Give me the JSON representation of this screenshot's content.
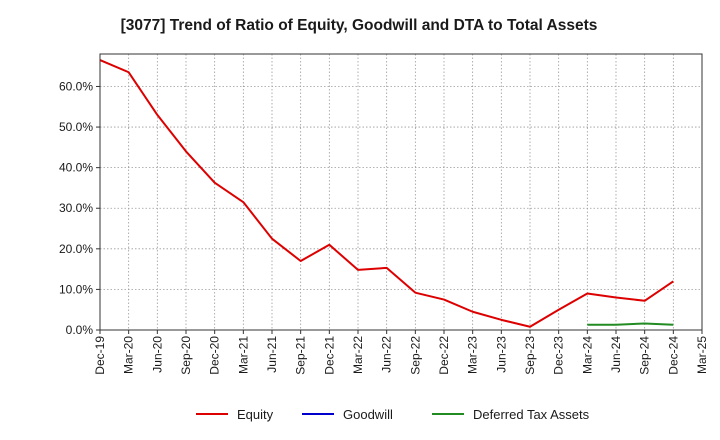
{
  "chart_data": {
    "type": "line",
    "title": "[3077]  Trend of Ratio of Equity, Goodwill and DTA to Total Assets",
    "xlabel": "",
    "ylabel": "",
    "categories": [
      "Dec-19",
      "Mar-20",
      "Jun-20",
      "Sep-20",
      "Dec-20",
      "Mar-21",
      "Jun-21",
      "Sep-21",
      "Dec-21",
      "Mar-22",
      "Jun-22",
      "Sep-22",
      "Dec-22",
      "Mar-23",
      "Jun-23",
      "Sep-23",
      "Dec-23",
      "Mar-24",
      "Jun-24",
      "Sep-24",
      "Dec-24",
      "Mar-25"
    ],
    "ylim": [
      0,
      68
    ],
    "yticks": [
      0,
      10,
      20,
      30,
      40,
      50,
      60
    ],
    "ytick_labels": [
      "0.0%",
      "10.0%",
      "20.0%",
      "30.0%",
      "40.0%",
      "50.0%",
      "60.0%"
    ],
    "grid": true,
    "legend_position": "bottom",
    "series": [
      {
        "name": "Equity",
        "color": "#dd0000",
        "values": [
          66.5,
          63.5,
          53.0,
          44.0,
          36.3,
          31.5,
          22.5,
          17.0,
          21.0,
          14.8,
          15.3,
          9.2,
          7.5,
          4.5,
          2.5,
          0.8,
          5.0,
          9.0,
          8.0,
          7.2,
          12.0,
          null
        ]
      },
      {
        "name": "Goodwill",
        "color": "#0000cc",
        "values": [
          null,
          null,
          null,
          null,
          null,
          null,
          null,
          null,
          null,
          null,
          null,
          null,
          null,
          null,
          null,
          null,
          null,
          null,
          null,
          null,
          null,
          null
        ]
      },
      {
        "name": "Deferred Tax Assets",
        "color": "#228b22",
        "values": [
          null,
          null,
          null,
          null,
          null,
          null,
          null,
          null,
          null,
          null,
          null,
          null,
          null,
          null,
          null,
          null,
          null,
          1.3,
          1.3,
          1.6,
          1.3,
          null
        ]
      }
    ]
  }
}
